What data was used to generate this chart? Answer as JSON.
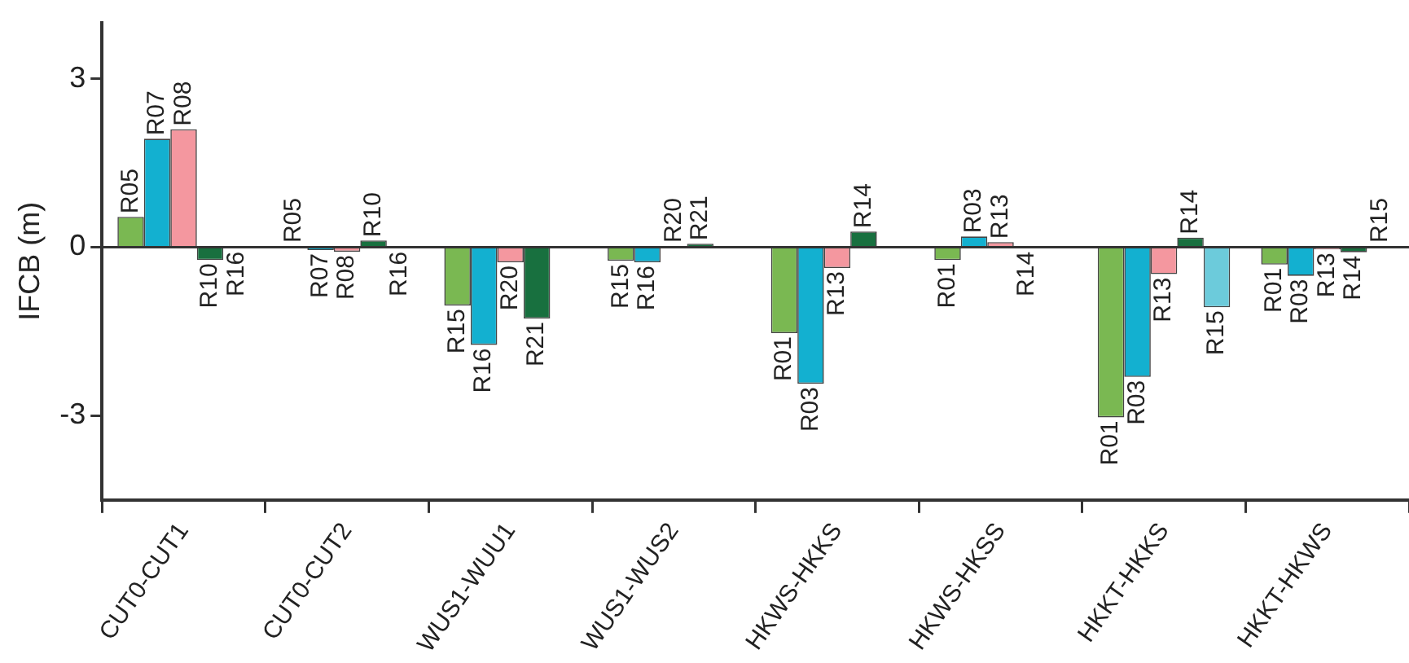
{
  "chart_data": {
    "type": "bar",
    "ylabel": "IFCB (m)",
    "categories": [
      "CUT0-CUT1",
      "CUT0-CUT2",
      "WUS1-WUU1",
      "WUS1-WUS2",
      "HKWS-HKKS",
      "HKWS-HKSS",
      "HKKT-HKKS",
      "HKKT-HKWS"
    ],
    "series": [
      {
        "color": "#7ab852",
        "values": [
          0.54,
          0.02,
          -1.04,
          -0.24,
          -1.53,
          -0.23,
          -3.03,
          -0.31
        ],
        "value_labels": [
          "R05",
          "R05",
          "R15",
          "R15",
          "R01",
          "R01",
          "R01",
          "R01"
        ]
      },
      {
        "color": "#13b0d0",
        "values": [
          1.93,
          -0.05,
          -1.74,
          -0.27,
          -2.43,
          0.19,
          -2.31,
          -0.51
        ],
        "value_labels": [
          "R07",
          "R07",
          "R16",
          "R16",
          "R03",
          "R03",
          "R03",
          "R03"
        ]
      },
      {
        "color": "#f4979f",
        "values": [
          2.1,
          -0.08,
          -0.27,
          0.02,
          -0.37,
          0.09,
          -0.48,
          -0.04
        ],
        "value_labels": [
          "R08",
          "R08",
          "R20",
          "R20",
          "R13",
          "R13",
          "R13",
          "R13"
        ]
      },
      {
        "color": "#18703f",
        "values": [
          -0.23,
          0.12,
          -1.27,
          0.06,
          0.28,
          -0.02,
          0.17,
          -0.09
        ],
        "value_labels": [
          "R10",
          "R10",
          "R21",
          "R21",
          "R14",
          "R14",
          "R14",
          "R14"
        ]
      },
      {
        "color": "#6ccbdb",
        "values": [
          -0.02,
          -0.02,
          null,
          null,
          null,
          null,
          -1.07,
          0.02
        ],
        "value_labels": [
          "R16",
          "R16",
          null,
          null,
          null,
          null,
          "R15",
          "R15"
        ]
      }
    ],
    "ylim": [
      -4.5,
      4
    ],
    "yticks": [
      3,
      0,
      -3
    ],
    "grid": false,
    "legend": false,
    "ref_lines": [
      {
        "axis": "y",
        "value": 0,
        "color": "#333333"
      }
    ]
  }
}
